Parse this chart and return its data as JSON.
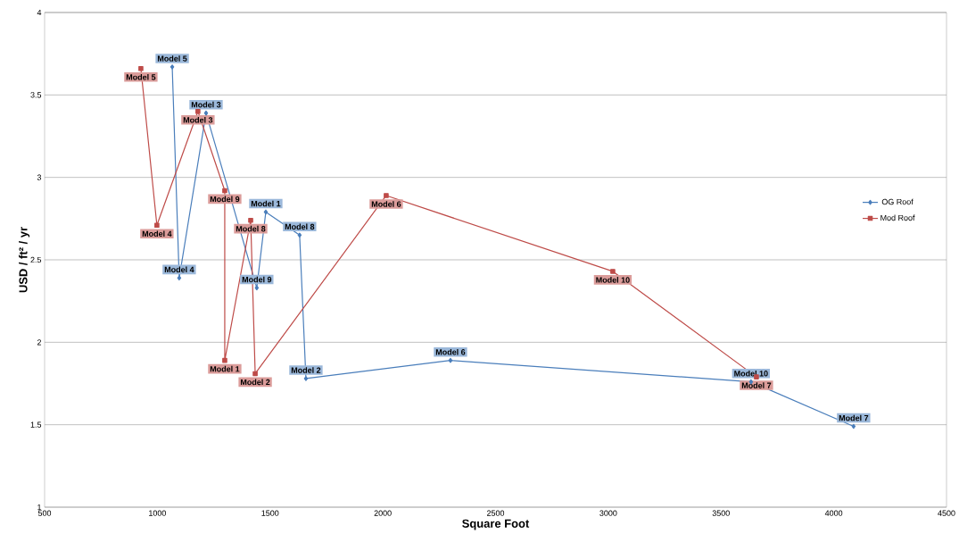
{
  "chart_data": {
    "type": "line",
    "xlabel": "Square Foot",
    "ylabel": "USD / ft² / yr",
    "xlim": [
      500,
      4500
    ],
    "xticks": [
      500,
      1000,
      1500,
      2000,
      2500,
      3000,
      3500,
      4000,
      4500
    ],
    "ylim": [
      1,
      4
    ],
    "yticks": [
      1,
      1.5,
      2,
      2.5,
      3,
      3.5,
      4
    ],
    "grid": "y",
    "legend": "right",
    "series": [
      {
        "name": "OG Roof",
        "color": "#4a7ebb",
        "marker": "diamond",
        "x": [
          1066,
          1097,
          1216,
          1441,
          1481,
          1631,
          1659,
          2300,
          3633,
          4088
        ],
        "values": [
          3.67,
          2.39,
          3.39,
          2.33,
          2.79,
          2.65,
          1.78,
          1.89,
          1.76,
          1.49
        ]
      },
      {
        "name": "Mod Roof",
        "color": "#be4b48",
        "marker": "square",
        "x": [
          927,
          998,
          1180,
          1299,
          1299,
          1414,
          1434,
          2015,
          3020,
          3657
        ],
        "values": [
          3.66,
          2.71,
          3.4,
          2.92,
          1.89,
          2.74,
          1.81,
          2.89,
          2.43,
          1.79
        ]
      }
    ],
    "annotations": [
      {
        "text": "Model 5",
        "x": 1066,
        "y": 3.67
      },
      {
        "text": "Model 4",
        "x": 1097,
        "y": 2.39
      },
      {
        "text": "Model 3",
        "x": 1216,
        "y": 3.39
      },
      {
        "text": "Model 9",
        "x": 1441,
        "y": 2.33
      },
      {
        "text": "Model 1",
        "x": 1481,
        "y": 2.79
      },
      {
        "text": "Model 8",
        "x": 1631,
        "y": 2.65
      },
      {
        "text": "Model 2",
        "x": 1659,
        "y": 1.78
      },
      {
        "text": "Model 6",
        "x": 2300,
        "y": 1.89
      },
      {
        "text": "Model 10",
        "x": 3633,
        "y": 1.76
      },
      {
        "text": "Model 7",
        "x": 4088,
        "y": 1.49
      },
      {
        "text": "Model 5",
        "x": 927,
        "y": 3.66
      },
      {
        "text": "Model 4",
        "x": 998,
        "y": 2.71
      },
      {
        "text": "Model 3",
        "x": 1180,
        "y": 3.4
      },
      {
        "text": "Model 9",
        "x": 1299,
        "y": 2.92
      },
      {
        "text": "Model 1",
        "x": 1299,
        "y": 1.89
      },
      {
        "text": "Model 8",
        "x": 1414,
        "y": 2.74
      },
      {
        "text": "Model 2",
        "x": 1434,
        "y": 1.81
      },
      {
        "text": "Model 6",
        "x": 2015,
        "y": 2.89
      },
      {
        "text": "Model 10",
        "x": 3020,
        "y": 2.43
      },
      {
        "text": "Model 7",
        "x": 3657,
        "y": 1.79
      }
    ]
  }
}
